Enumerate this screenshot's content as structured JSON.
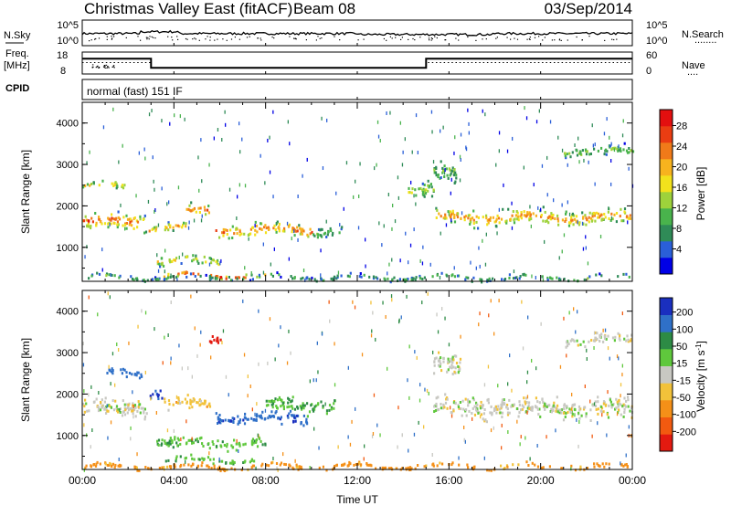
{
  "header": {
    "title": "Christmas Valley East (fitACF)",
    "beam": "Beam 08",
    "date": "03/Sep/2014"
  },
  "top_panels": {
    "nsky": {
      "left_label": "N.Sky",
      "left_ticks": [
        "10^5",
        "10^0"
      ],
      "right_ticks": [
        "10^5",
        "10^0"
      ],
      "right_label": "N.Search",
      "right_legend": "........"
    },
    "freq": {
      "left_label_1": "Freq.",
      "left_label_2": "[MHz]",
      "left_ticks": [
        "18",
        "8"
      ],
      "right_ticks": [
        "60",
        "0"
      ],
      "right_label": "Nave",
      "right_legend": "....",
      "freq_steps": [
        [
          0,
          15.5
        ],
        [
          3.0,
          15.5
        ],
        [
          3.0,
          10.2
        ],
        [
          15.0,
          10.2
        ],
        [
          15.0,
          15.5
        ],
        [
          24,
          15.5
        ]
      ]
    },
    "cpid": {
      "label": "CPID",
      "value": "normal (fast) 151 IF"
    }
  },
  "chart_data": [
    {
      "type": "heatmap",
      "name": "power",
      "xlabel": "Time UT",
      "ylabel": "Slant Range [km]",
      "xlim": [
        0,
        24
      ],
      "ylim": [
        180,
        4500
      ],
      "yticks": [
        "1000",
        "2000",
        "3000",
        "4000"
      ],
      "colorbar": {
        "label": "Power [dB]",
        "ticks": [
          "4",
          "8",
          "12",
          "16",
          "20",
          "24",
          "28"
        ],
        "colors": [
          "#0000e6",
          "#2a5fd8",
          "#2f8b57",
          "#49b34c",
          "#9ed23b",
          "#f2e21c",
          "#f7b31e",
          "#f07a19",
          "#ea3d12",
          "#e30f0f"
        ]
      },
      "echo_bands": [
        {
          "t0": 0.0,
          "t1": 2.8,
          "range": 1650,
          "width": 260,
          "level": 0.85
        },
        {
          "t0": 0.0,
          "t1": 2.0,
          "range": 2500,
          "width": 120,
          "level": 0.55
        },
        {
          "t0": 2.8,
          "t1": 4.5,
          "range": 1500,
          "width": 150,
          "level": 0.7
        },
        {
          "t0": 4.5,
          "t1": 5.5,
          "range": 1900,
          "width": 200,
          "level": 0.8
        },
        {
          "t0": 5.8,
          "t1": 10.0,
          "range": 1450,
          "width": 220,
          "level": 0.8
        },
        {
          "t0": 10.0,
          "t1": 11.3,
          "range": 1400,
          "width": 200,
          "level": 0.35
        },
        {
          "t0": 3.2,
          "t1": 6.0,
          "range": 700,
          "width": 150,
          "level": 0.6
        },
        {
          "t0": 3.5,
          "t1": 8.0,
          "range": 350,
          "width": 80,
          "level": 0.9
        },
        {
          "t0": 14.2,
          "t1": 15.3,
          "range": 2400,
          "width": 300,
          "level": 0.45
        },
        {
          "t0": 15.4,
          "t1": 24.0,
          "range": 1750,
          "width": 250,
          "level": 0.75
        },
        {
          "t0": 15.3,
          "t1": 16.3,
          "range": 2800,
          "width": 350,
          "level": 0.35
        },
        {
          "t0": 21.0,
          "t1": 24.0,
          "range": 3350,
          "width": 180,
          "level": 0.4
        },
        {
          "t0": 0.0,
          "t1": 24.0,
          "range": 300,
          "width": 80,
          "level": 0.3
        }
      ]
    },
    {
      "type": "heatmap",
      "name": "velocity",
      "xlabel": "Time UT",
      "ylabel": "Slant Range [km]",
      "xlim": [
        0,
        24
      ],
      "ylim": [
        180,
        4500
      ],
      "yticks": [
        "1000",
        "2000",
        "3000",
        "4000"
      ],
      "xticks": [
        "00:00",
        "04:00",
        "08:00",
        "12:00",
        "16:00",
        "20:00",
        "00:00"
      ],
      "colorbar": {
        "label": "Velocity [m s",
        "label_sup": "-1",
        "label_end": "]",
        "ticks": [
          "200",
          "100",
          "50",
          "15",
          "-15",
          "-50",
          "-100",
          "-200"
        ],
        "colors": [
          "#1a2fbf",
          "#2f70c8",
          "#2d8b45",
          "#5fc83c",
          "#c8c8c2",
          "#f2c23a",
          "#f59018",
          "#f25a10",
          "#e31a10"
        ]
      },
      "echo_bands": [
        {
          "t0": 0.0,
          "t1": 2.8,
          "range": 1700,
          "width": 330,
          "v": 0
        },
        {
          "t0": 1.0,
          "t1": 2.6,
          "range": 2550,
          "width": 140,
          "v": 150
        },
        {
          "t0": 2.9,
          "t1": 3.5,
          "range": 2050,
          "width": 180,
          "v": 180
        },
        {
          "t0": 3.5,
          "t1": 5.6,
          "range": 1800,
          "width": 200,
          "v": -30
        },
        {
          "t0": 5.5,
          "t1": 6.0,
          "range": 3350,
          "width": 250,
          "v": -200
        },
        {
          "t0": 5.8,
          "t1": 9.8,
          "range": 1450,
          "width": 220,
          "v": 160
        },
        {
          "t0": 8.0,
          "t1": 11.0,
          "range": 1750,
          "width": 250,
          "v": 40
        },
        {
          "t0": 3.2,
          "t1": 8.0,
          "range": 850,
          "width": 180,
          "v": 40
        },
        {
          "t0": 3.5,
          "t1": 7.5,
          "range": 430,
          "width": 90,
          "v": 40
        },
        {
          "t0": 15.3,
          "t1": 24.0,
          "range": 1700,
          "width": 330,
          "v": 0
        },
        {
          "t0": 15.3,
          "t1": 16.5,
          "range": 2700,
          "width": 400,
          "v": 0
        },
        {
          "t0": 21.0,
          "t1": 24.0,
          "range": 3350,
          "width": 180,
          "v": 0
        },
        {
          "t0": 0.0,
          "t1": 24.0,
          "range": 280,
          "width": 90,
          "v": -70
        }
      ]
    }
  ]
}
